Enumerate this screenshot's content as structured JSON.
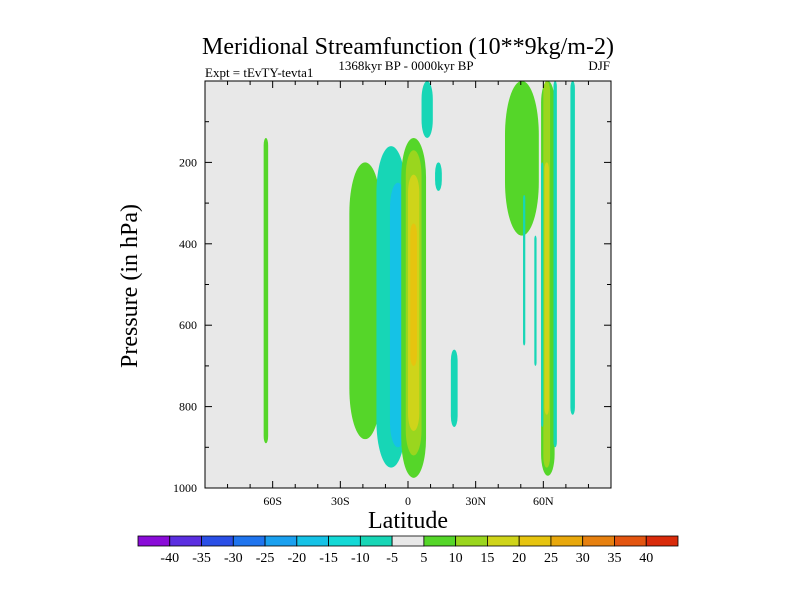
{
  "chart_data": {
    "type": "heatmap",
    "title": "Meridional Streamfunction (10**9kg/m-2)",
    "subtitle_left": "Expt = tEvTY-tevta1",
    "subtitle_center": "1368kyr BP - 0000kyr BP",
    "subtitle_right": "DJF",
    "xlabel": "Latitude",
    "ylabel": "Pressure (in hPa)",
    "xlim": [
      -90,
      90
    ],
    "ylim": [
      1000,
      0
    ],
    "x_ticks": [
      {
        "value": -60,
        "label": "60S"
      },
      {
        "value": -30,
        "label": "30S"
      },
      {
        "value": 0,
        "label": "0"
      },
      {
        "value": 30,
        "label": "30N"
      },
      {
        "value": 60,
        "label": "60N"
      }
    ],
    "y_ticks": [
      {
        "value": 200,
        "label": "200"
      },
      {
        "value": 400,
        "label": "400"
      },
      {
        "value": 600,
        "label": "600"
      },
      {
        "value": 800,
        "label": "800"
      },
      {
        "value": 1000,
        "label": "1000"
      }
    ],
    "colorbar": {
      "levels": [
        -40,
        -35,
        -30,
        -25,
        -20,
        -15,
        -10,
        -5,
        5,
        10,
        15,
        20,
        25,
        30,
        35,
        40
      ],
      "colors": [
        "#8a0cd8",
        "#5b2ee0",
        "#2a4fe6",
        "#1f74ee",
        "#1aa0ef",
        "#15c2e6",
        "#14d9d6",
        "#17d6b6",
        "#e8e8e8",
        "#55d629",
        "#9ad61e",
        "#cfd41a",
        "#e6c40f",
        "#e8a80c",
        "#e6800f",
        "#e35510",
        "#d92b0b"
      ]
    },
    "regions": [
      {
        "lat_min": -64,
        "lat_max": -62,
        "p_top": 140,
        "p_bottom": 890,
        "value": 7
      },
      {
        "lat_min": -26,
        "lat_max": -12,
        "p_top": 200,
        "p_bottom": 880,
        "value": 7
      },
      {
        "lat_min": -14,
        "lat_max": -1,
        "p_top": 160,
        "p_bottom": 950,
        "value": -10
      },
      {
        "lat_min": -8,
        "lat_max": -1,
        "p_top": 250,
        "p_bottom": 900,
        "value": -20
      },
      {
        "lat_min": -3,
        "lat_max": 8,
        "p_top": 140,
        "p_bottom": 975,
        "value": 7
      },
      {
        "lat_min": -1,
        "lat_max": 6,
        "p_top": 170,
        "p_bottom": 920,
        "value": 12
      },
      {
        "lat_min": 0,
        "lat_max": 5,
        "p_top": 230,
        "p_bottom": 860,
        "value": 17
      },
      {
        "lat_min": 1,
        "lat_max": 4,
        "p_top": 350,
        "p_bottom": 700,
        "value": 22
      },
      {
        "lat_min": 6,
        "lat_max": 11,
        "p_top": 0,
        "p_bottom": 140,
        "value": -7
      },
      {
        "lat_min": 12,
        "lat_max": 15,
        "p_top": 200,
        "p_bottom": 270,
        "value": -7
      },
      {
        "lat_min": 19,
        "lat_max": 22,
        "p_top": 660,
        "p_bottom": 850,
        "value": -7
      },
      {
        "lat_min": 43,
        "lat_max": 58,
        "p_top": 0,
        "p_bottom": 380,
        "value": 7
      },
      {
        "lat_min": 59,
        "lat_max": 65,
        "p_top": 0,
        "p_bottom": 970,
        "value": 7
      },
      {
        "lat_min": 60,
        "lat_max": 63,
        "p_top": 0,
        "p_bottom": 950,
        "value": 12
      },
      {
        "lat_min": 60.5,
        "lat_max": 62.5,
        "p_top": 200,
        "p_bottom": 820,
        "value": 17
      },
      {
        "lat_min": 59,
        "lat_max": 60,
        "p_top": 200,
        "p_bottom": 850,
        "value": -7
      },
      {
        "lat_min": 64.5,
        "lat_max": 66,
        "p_top": 0,
        "p_bottom": 900,
        "value": -7
      },
      {
        "lat_min": 72,
        "lat_max": 74,
        "p_top": 0,
        "p_bottom": 820,
        "value": -7
      },
      {
        "lat_min": 51,
        "lat_max": 52,
        "p_top": 280,
        "p_bottom": 650,
        "value": -7
      },
      {
        "lat_min": 56,
        "lat_max": 57,
        "p_top": 380,
        "p_bottom": 700,
        "value": -7
      }
    ]
  }
}
